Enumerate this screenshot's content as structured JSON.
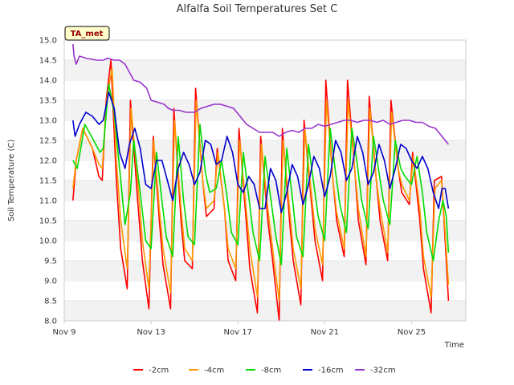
{
  "chart_data": {
    "type": "line",
    "title": "Alfalfa Soil Temperatures Set C",
    "xlabel": "Time",
    "ylabel": "Soil Temperature (C)",
    "badge": "TA_met",
    "x_ticks": [
      "Nov 9",
      "Nov 13",
      "Nov 17",
      "Nov 21",
      "Nov 25"
    ],
    "y_ticks": [
      "8.0",
      "8.5",
      "9.0",
      "9.5",
      "10.0",
      "10.5",
      "11.0",
      "11.5",
      "12.0",
      "12.5",
      "13.0",
      "13.5",
      "14.0",
      "14.5",
      "15.0"
    ],
    "ylim": [
      8.0,
      15.0
    ],
    "xlim": [
      9.0,
      27.5
    ],
    "grid": "horizontal bands",
    "legend_position": "bottom",
    "series": [
      {
        "name": "-2cm",
        "color": "#ff0000",
        "x": [
          9.4,
          9.55,
          9.85,
          10.3,
          10.6,
          10.75,
          10.93,
          11.15,
          11.4,
          11.6,
          11.9,
          12.05,
          12.38,
          12.6,
          12.9,
          13.1,
          13.38,
          13.55,
          13.9,
          14.05,
          14.38,
          14.55,
          14.9,
          15.05,
          15.38,
          15.55,
          15.9,
          16.05,
          16.38,
          16.55,
          16.9,
          17.05,
          17.38,
          17.55,
          17.9,
          18.05,
          18.38,
          18.6,
          18.9,
          19.05,
          19.38,
          19.55,
          19.9,
          20.05,
          20.38,
          20.55,
          20.9,
          21.05,
          21.38,
          21.55,
          21.9,
          22.05,
          22.38,
          22.55,
          22.9,
          23.05,
          23.38,
          23.55,
          23.9,
          24.05,
          24.38,
          24.55,
          24.9,
          25.05,
          25.38,
          25.55,
          25.9,
          26.05,
          26.38,
          26.55,
          26.7
        ],
        "y": [
          11.0,
          12.0,
          12.8,
          12.3,
          11.6,
          11.5,
          13.5,
          14.5,
          11.5,
          9.8,
          8.8,
          13.5,
          11.0,
          9.5,
          8.3,
          12.6,
          10.5,
          9.4,
          8.3,
          13.3,
          10.5,
          9.5,
          9.3,
          13.8,
          11.5,
          10.6,
          10.8,
          12.3,
          10.8,
          9.5,
          9.0,
          12.8,
          10.5,
          9.3,
          8.2,
          12.6,
          10.5,
          9.5,
          8.0,
          12.8,
          10.5,
          9.5,
          8.4,
          13.0,
          11.0,
          10.0,
          9.0,
          14.0,
          11.5,
          10.5,
          9.6,
          14.0,
          11.8,
          10.5,
          9.4,
          13.6,
          11.5,
          10.5,
          9.5,
          13.5,
          11.8,
          11.2,
          10.9,
          12.2,
          10.5,
          9.3,
          8.2,
          11.5,
          11.6,
          10.0,
          8.5
        ]
      },
      {
        "name": "-4cm",
        "color": "#ff9900",
        "x": [
          9.4,
          9.55,
          9.85,
          10.3,
          10.6,
          10.75,
          10.95,
          11.2,
          11.4,
          11.6,
          11.9,
          12.08,
          12.38,
          12.6,
          12.9,
          13.12,
          13.38,
          13.55,
          13.9,
          14.08,
          14.38,
          14.55,
          14.9,
          15.08,
          15.38,
          15.55,
          15.9,
          16.08,
          16.38,
          16.55,
          16.9,
          17.08,
          17.38,
          17.55,
          17.9,
          18.08,
          18.38,
          18.6,
          18.9,
          19.08,
          19.38,
          19.55,
          19.9,
          20.08,
          20.38,
          20.55,
          20.9,
          21.08,
          21.38,
          21.55,
          21.9,
          22.08,
          22.38,
          22.55,
          22.9,
          23.08,
          23.38,
          23.55,
          23.9,
          24.08,
          24.38,
          24.55,
          24.9,
          25.08,
          25.38,
          25.55,
          25.9,
          26.08,
          26.38,
          26.55,
          26.7
        ],
        "y": [
          11.3,
          12.0,
          12.8,
          12.3,
          11.9,
          11.8,
          13.5,
          14.3,
          12.0,
          10.5,
          9.3,
          13.3,
          11.5,
          10.0,
          8.8,
          12.5,
          10.8,
          9.8,
          8.7,
          13.0,
          10.8,
          9.8,
          9.5,
          13.5,
          11.5,
          10.8,
          11.0,
          12.2,
          10.8,
          9.8,
          9.3,
          12.5,
          10.8,
          9.8,
          8.6,
          12.4,
          10.8,
          9.8,
          8.5,
          12.5,
          10.8,
          9.8,
          8.8,
          12.8,
          11.2,
          10.3,
          9.4,
          13.5,
          11.5,
          10.7,
          9.8,
          13.5,
          11.8,
          10.8,
          9.6,
          13.3,
          11.5,
          10.8,
          9.7,
          13.2,
          11.8,
          11.4,
          11.0,
          12.1,
          10.8,
          9.6,
          8.6,
          11.3,
          11.5,
          10.2,
          8.9
        ]
      },
      {
        "name": "-8cm",
        "color": "#00dd00",
        "x": [
          9.4,
          9.6,
          9.95,
          10.35,
          10.65,
          10.8,
          11.05,
          11.3,
          11.55,
          11.8,
          12.05,
          12.2,
          12.5,
          12.75,
          13.0,
          13.25,
          13.5,
          13.7,
          14.0,
          14.25,
          14.5,
          14.7,
          15.0,
          15.25,
          15.5,
          15.7,
          16.0,
          16.25,
          16.5,
          16.7,
          17.0,
          17.25,
          17.5,
          17.7,
          18.0,
          18.25,
          18.5,
          18.75,
          19.0,
          19.25,
          19.5,
          19.7,
          20.0,
          20.25,
          20.5,
          20.7,
          21.0,
          21.25,
          21.5,
          21.7,
          22.0,
          22.25,
          22.5,
          22.7,
          23.0,
          23.25,
          23.5,
          23.7,
          24.0,
          24.25,
          24.5,
          24.7,
          25.0,
          25.25,
          25.5,
          25.7,
          26.0,
          26.25,
          26.45,
          26.6,
          26.7
        ],
        "y": [
          12.0,
          11.8,
          12.9,
          12.5,
          12.2,
          12.3,
          13.9,
          13.2,
          11.8,
          10.4,
          11.2,
          12.5,
          11.2,
          10.0,
          9.8,
          12.2,
          11.0,
          10.1,
          9.6,
          12.6,
          11.0,
          10.1,
          9.9,
          12.9,
          11.7,
          11.2,
          11.3,
          12.0,
          11.1,
          10.2,
          9.9,
          12.2,
          11.1,
          10.2,
          9.5,
          12.1,
          11.1,
          10.1,
          9.4,
          12.3,
          11.1,
          10.1,
          9.6,
          12.4,
          11.4,
          10.6,
          10.0,
          12.8,
          11.7,
          10.9,
          10.2,
          12.8,
          11.9,
          11.0,
          10.3,
          12.6,
          11.7,
          11.0,
          10.4,
          12.5,
          11.8,
          11.6,
          11.4,
          12.1,
          11.2,
          10.2,
          9.5,
          10.5,
          11.0,
          10.6,
          9.7
        ]
      },
      {
        "name": "-16cm",
        "color": "#0000cc",
        "x": [
          9.4,
          9.5,
          9.7,
          10.0,
          10.3,
          10.6,
          10.8,
          11.05,
          11.3,
          11.55,
          11.8,
          12.0,
          12.25,
          12.5,
          12.75,
          13.0,
          13.25,
          13.5,
          13.75,
          14.0,
          14.25,
          14.5,
          14.75,
          15.0,
          15.25,
          15.5,
          15.75,
          16.0,
          16.25,
          16.5,
          16.75,
          17.0,
          17.25,
          17.5,
          17.75,
          18.0,
          18.25,
          18.5,
          18.75,
          19.0,
          19.25,
          19.5,
          19.75,
          20.0,
          20.25,
          20.5,
          20.75,
          21.0,
          21.25,
          21.5,
          21.75,
          22.0,
          22.25,
          22.5,
          22.75,
          23.0,
          23.25,
          23.5,
          23.75,
          24.0,
          24.25,
          24.5,
          24.75,
          25.0,
          25.25,
          25.5,
          25.75,
          26.0,
          26.25,
          26.4,
          26.55,
          26.7
        ],
        "y": [
          13.0,
          12.6,
          12.9,
          13.2,
          13.1,
          12.9,
          13.0,
          13.7,
          13.3,
          12.2,
          11.8,
          12.4,
          12.8,
          12.3,
          11.4,
          11.3,
          12.0,
          12.0,
          11.5,
          11.0,
          11.8,
          12.2,
          11.9,
          11.4,
          11.7,
          12.5,
          12.4,
          11.9,
          12.0,
          12.6,
          12.2,
          11.4,
          11.2,
          11.6,
          11.4,
          10.8,
          10.8,
          11.8,
          11.5,
          10.7,
          11.2,
          11.9,
          11.6,
          10.9,
          11.4,
          12.1,
          11.8,
          11.1,
          11.6,
          12.5,
          12.2,
          11.5,
          11.8,
          12.6,
          12.2,
          11.4,
          11.7,
          12.4,
          12.0,
          11.3,
          11.8,
          12.4,
          12.3,
          12.0,
          11.8,
          12.1,
          11.8,
          11.2,
          10.8,
          11.3,
          11.3,
          10.8
        ]
      },
      {
        "name": "-32cm",
        "color": "#9933cc",
        "x": [
          9.4,
          9.45,
          9.55,
          9.7,
          10.0,
          10.5,
          10.8,
          11.0,
          11.3,
          11.55,
          11.8,
          12.0,
          12.2,
          12.5,
          12.8,
          13.0,
          13.3,
          13.6,
          13.8,
          14.0,
          14.3,
          14.6,
          15.0,
          15.3,
          15.6,
          15.9,
          16.2,
          16.5,
          16.8,
          17.1,
          17.4,
          17.7,
          18.0,
          18.3,
          18.6,
          18.9,
          19.2,
          19.5,
          19.8,
          20.1,
          20.4,
          20.7,
          21.0,
          21.3,
          21.6,
          21.9,
          22.2,
          22.5,
          22.8,
          23.1,
          23.4,
          23.7,
          24.0,
          24.3,
          24.6,
          24.9,
          25.2,
          25.5,
          25.8,
          26.1,
          26.4,
          26.7
        ],
        "y": [
          14.9,
          14.6,
          14.4,
          14.6,
          14.55,
          14.5,
          14.5,
          14.55,
          14.5,
          14.5,
          14.4,
          14.2,
          14.0,
          13.95,
          13.8,
          13.5,
          13.45,
          13.4,
          13.3,
          13.25,
          13.25,
          13.2,
          13.2,
          13.3,
          13.35,
          13.4,
          13.4,
          13.35,
          13.3,
          13.1,
          12.9,
          12.8,
          12.7,
          12.7,
          12.7,
          12.6,
          12.7,
          12.75,
          12.7,
          12.8,
          12.8,
          12.9,
          12.85,
          12.9,
          12.95,
          13.0,
          13.0,
          12.95,
          13.0,
          13.0,
          12.95,
          13.0,
          12.9,
          12.95,
          13.0,
          13.0,
          12.95,
          12.95,
          12.85,
          12.8,
          12.6,
          12.4
        ]
      }
    ]
  }
}
